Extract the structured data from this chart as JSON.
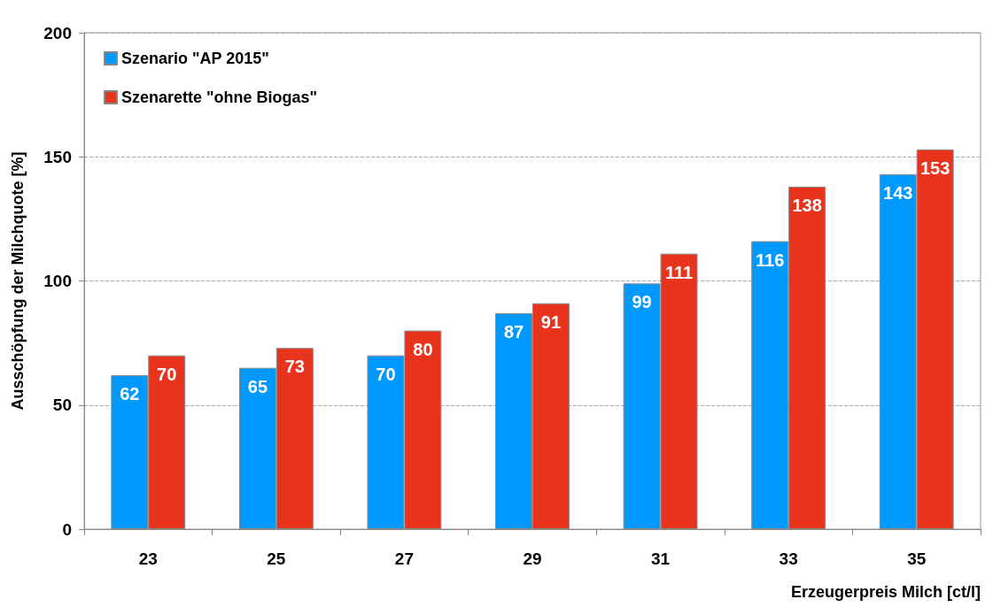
{
  "chart_data": {
    "type": "bar",
    "xlabel": "Erzeugerpreis Milch [ct/l]",
    "ylabel": "Ausschöpfung der Milchquote [%]",
    "categories": [
      "23",
      "25",
      "27",
      "29",
      "31",
      "33",
      "35"
    ],
    "series": [
      {
        "name": "Szenario \"AP 2015\"",
        "color": "#0099ff",
        "values": [
          62,
          65,
          70,
          87,
          99,
          116,
          143
        ]
      },
      {
        "name": "Szenarette \"ohne Biogas\"",
        "color": "#e8341c",
        "values": [
          70,
          73,
          80,
          91,
          111,
          138,
          153
        ]
      }
    ],
    "ylim": [
      0,
      200
    ],
    "yticks": [
      0,
      50,
      100,
      150,
      200
    ],
    "grid": "y",
    "legend": "top left",
    "data_labels": true
  }
}
